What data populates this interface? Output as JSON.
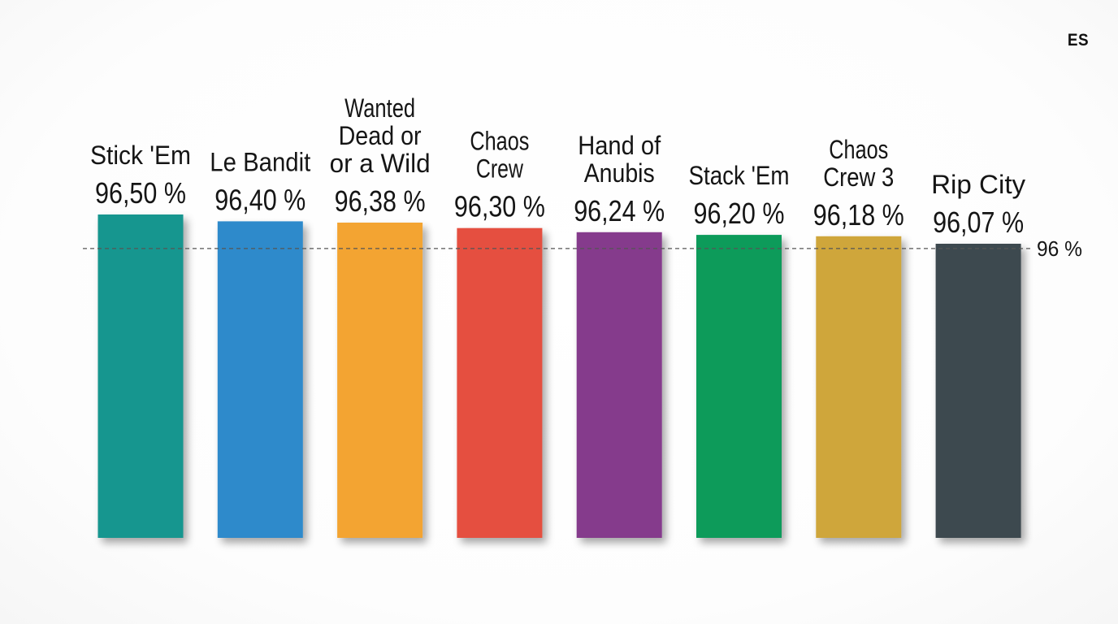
{
  "corner_label": "ES",
  "chart_data": {
    "type": "bar",
    "title": "",
    "xlabel": "",
    "ylabel": "",
    "categories": [
      "Stick 'Em",
      "Le Bandit",
      "Wanted Dead or or a Wild",
      "Chaos Crew",
      "Hand of Anubis",
      "Stack 'Em",
      "Chaos Crew 3",
      "Rip City"
    ],
    "category_lines": [
      [
        "Stick 'Em"
      ],
      [
        "Le Bandit"
      ],
      [
        "Wanted",
        "Dead or",
        "or a Wild"
      ],
      [
        "Chaos",
        "Crew"
      ],
      [
        "Hand of",
        "Anubis"
      ],
      [
        "Stack 'Em"
      ],
      [
        "Chaos",
        "Crew 3"
      ],
      [
        "Rip City"
      ]
    ],
    "values": [
      96.5,
      96.4,
      96.38,
      96.3,
      96.24,
      96.2,
      96.18,
      96.07
    ],
    "value_labels": [
      "96,50 %",
      "96,40 %",
      "96,38 %",
      "96,30 %",
      "96,24 %",
      "96,20 %",
      "96,18 %",
      "96,07 %"
    ],
    "colors": [
      "#17968f",
      "#2f8acb",
      "#f3a432",
      "#e5503f",
      "#853a8c",
      "#079b5a",
      "#cfa63a",
      "#3e484f"
    ],
    "reference_line": {
      "value": 96,
      "label": "96 %",
      "style": "dashed"
    },
    "grid": false,
    "legend": "none"
  }
}
